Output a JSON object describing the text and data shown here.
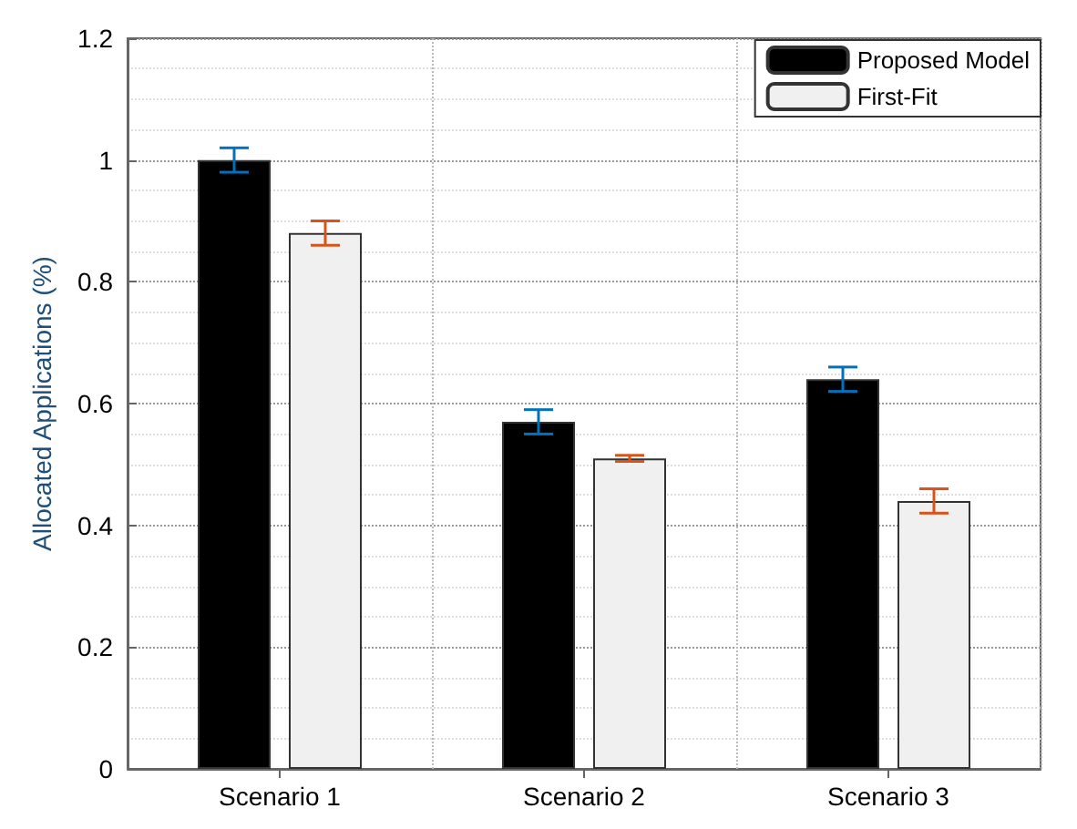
{
  "chart_data": {
    "type": "bar",
    "ylabel": "Allocated Applications (%)",
    "categories": [
      "Scenario 1",
      "Scenario 2",
      "Scenario 3"
    ],
    "series": [
      {
        "name": "Proposed Model",
        "color": "#000000",
        "values": [
          1.0,
          0.57,
          0.64
        ],
        "errors": [
          0.02,
          0.02,
          0.02
        ]
      },
      {
        "name": "First-Fit",
        "color": "#f0f0f0",
        "values": [
          0.88,
          0.51,
          0.44
        ],
        "errors": [
          0.02,
          0.005,
          0.02
        ]
      }
    ],
    "ylim": [
      0,
      1.2
    ],
    "yticks": [
      0,
      0.2,
      0.4,
      0.6,
      0.8,
      1,
      1.2
    ],
    "grid": true,
    "legend": "top right"
  }
}
